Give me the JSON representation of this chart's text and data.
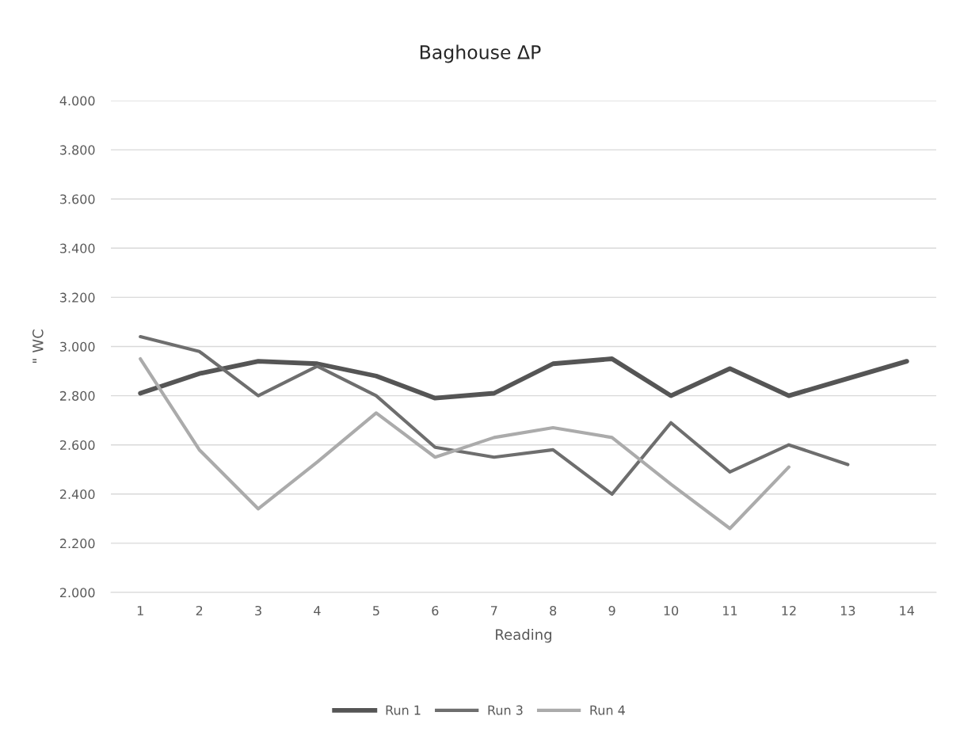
{
  "chart_data": {
    "type": "line",
    "title": "Baghouse ΔP",
    "xlabel": "Reading",
    "ylabel": "\" WC",
    "categories": [
      "1",
      "2",
      "3",
      "4",
      "5",
      "6",
      "7",
      "8",
      "9",
      "10",
      "11",
      "12",
      "13",
      "14"
    ],
    "series": [
      {
        "name": "Run 1",
        "color": "#555555",
        "values": [
          2.81,
          2.89,
          2.94,
          2.93,
          2.88,
          2.79,
          2.81,
          2.93,
          2.95,
          2.8,
          2.91,
          2.8,
          2.87,
          2.94
        ]
      },
      {
        "name": "Run 3",
        "color": "#6e6e6e",
        "values": [
          3.04,
          2.98,
          2.8,
          2.92,
          2.8,
          2.59,
          2.55,
          2.58,
          2.4,
          2.69,
          2.49,
          2.6,
          2.52,
          null
        ]
      },
      {
        "name": "Run 4",
        "color": "#ababab",
        "values": [
          2.95,
          2.58,
          2.34,
          2.53,
          2.73,
          2.55,
          2.63,
          2.67,
          2.63,
          2.44,
          2.26,
          2.51,
          null,
          null
        ]
      }
    ],
    "ylim": [
      2,
      4
    ],
    "yticks": [
      {
        "value": 2,
        "label": "2.000"
      },
      {
        "value": 2.2,
        "label": "2.200"
      },
      {
        "value": 2.4,
        "label": "2.400"
      },
      {
        "value": 2.6,
        "label": "2.600"
      },
      {
        "value": 2.8,
        "label": "2.800"
      },
      {
        "value": 3,
        "label": "3.000"
      },
      {
        "value": 3.2,
        "label": "3.200"
      },
      {
        "value": 3.4,
        "label": "3.400"
      },
      {
        "value": 3.6,
        "label": "3.600"
      },
      {
        "value": 3.8,
        "label": "3.800"
      },
      {
        "value": 4,
        "label": "4.000"
      }
    ],
    "grid": "y",
    "legend": "bottom",
    "marker": "none",
    "line_style": "solid"
  }
}
